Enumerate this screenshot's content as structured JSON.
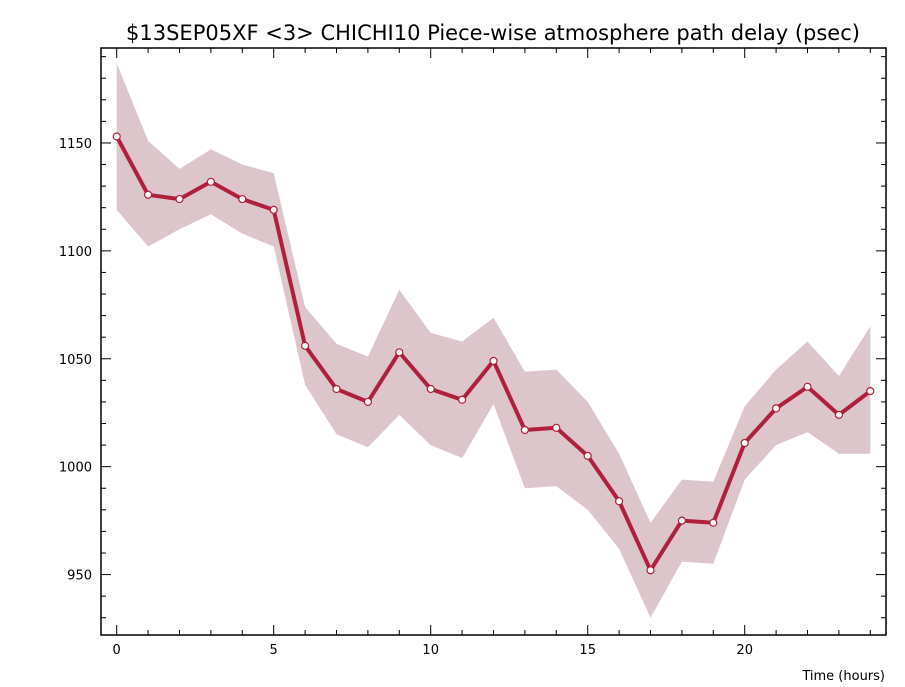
{
  "chart_data": {
    "type": "line",
    "title": "$13SEP05XF <3>   CHICHI10   Piece-wise atmosphere path delay (psec)",
    "xlabel": "Time (hours)",
    "ylabel": "",
    "xlim": [
      -0.5,
      24.5
    ],
    "ylim": [
      922,
      1194
    ],
    "x_ticks": [
      0,
      5,
      10,
      15,
      20
    ],
    "y_ticks": [
      950,
      1000,
      1050,
      1100,
      1150
    ],
    "grid": false,
    "series": [
      {
        "x": [
          0,
          1,
          2,
          3,
          4,
          5,
          6,
          7,
          8,
          9,
          10,
          11,
          12,
          13,
          14,
          15,
          16,
          17,
          18,
          19,
          20,
          21,
          22,
          23,
          24
        ],
        "values": [
          1153,
          1126,
          1124,
          1132,
          1124,
          1119,
          1056,
          1036,
          1030,
          1053,
          1036,
          1031,
          1049,
          1017,
          1018,
          1005,
          984,
          952,
          975,
          974,
          1011,
          1027,
          1037,
          1024,
          1035
        ],
        "upper": [
          1187,
          1151,
          1138,
          1147,
          1140,
          1136,
          1074,
          1057,
          1051,
          1082,
          1062,
          1058,
          1069,
          1044,
          1045,
          1030,
          1006,
          974,
          994,
          993,
          1028,
          1045,
          1058,
          1042,
          1065
        ],
        "lower": [
          1119,
          1102,
          1110,
          1117,
          1108,
          1102,
          1038,
          1015,
          1009,
          1024,
          1010,
          1004,
          1029,
          990,
          991,
          980,
          962,
          930,
          956,
          955,
          994,
          1010,
          1016,
          1006,
          1006
        ]
      }
    ],
    "colors": {
      "line": "#b0203c",
      "band": "#dcc5cb",
      "marker_fill": "#ffffff"
    }
  }
}
